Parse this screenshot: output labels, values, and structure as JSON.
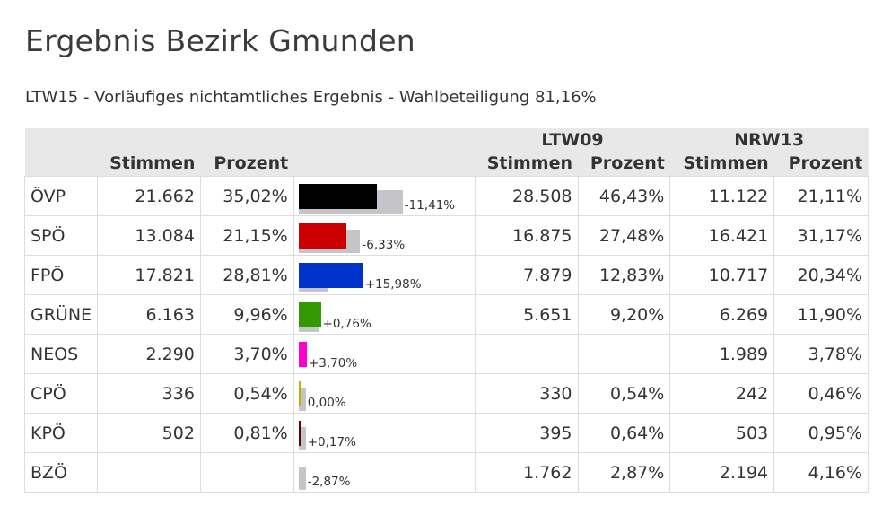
{
  "title": "Ergebnis Bezirk Gmunden",
  "subtitle": "LTW15 - Vorläufiges nichtamtliches Ergebnis - Wahlbeteiligung 81,16%",
  "headers": {
    "group_ltw09": "LTW09",
    "group_nrw13": "NRW13",
    "stimmen": "Stimmen",
    "prozent": "Prozent"
  },
  "rows": [
    {
      "party": "ÖVP",
      "stimmen": "21.662",
      "prozent": "35,02%",
      "cur_pct": 35.02,
      "prev_pct": 46.43,
      "color": "#000000",
      "diff": "-11,41%",
      "ltw09_stimmen": "28.508",
      "ltw09_prozent": "46,43%",
      "nrw13_stimmen": "11.122",
      "nrw13_prozent": "21,11%"
    },
    {
      "party": "SPÖ",
      "stimmen": "13.084",
      "prozent": "21,15%",
      "cur_pct": 21.15,
      "prev_pct": 27.48,
      "color": "#cc0000",
      "diff": "-6,33%",
      "ltw09_stimmen": "16.875",
      "ltw09_prozent": "27,48%",
      "nrw13_stimmen": "16.421",
      "nrw13_prozent": "31,17%"
    },
    {
      "party": "FPÖ",
      "stimmen": "17.821",
      "prozent": "28,81%",
      "cur_pct": 28.81,
      "prev_pct": 12.83,
      "color": "#0033cc",
      "diff": "+15,98%",
      "ltw09_stimmen": "7.879",
      "ltw09_prozent": "12,83%",
      "nrw13_stimmen": "10.717",
      "nrw13_prozent": "20,34%"
    },
    {
      "party": "GRÜNE",
      "stimmen": "6.163",
      "prozent": "9,96%",
      "cur_pct": 9.96,
      "prev_pct": 9.2,
      "color": "#339900",
      "diff": "+0,76%",
      "ltw09_stimmen": "5.651",
      "ltw09_prozent": "9,20%",
      "nrw13_stimmen": "6.269",
      "nrw13_prozent": "11,90%"
    },
    {
      "party": "NEOS",
      "stimmen": "2.290",
      "prozent": "3,70%",
      "cur_pct": 3.7,
      "prev_pct": 0,
      "color": "#ff00cc",
      "diff": "+3,70%",
      "ltw09_stimmen": "",
      "ltw09_prozent": "",
      "nrw13_stimmen": "1.989",
      "nrw13_prozent": "3,78%"
    },
    {
      "party": "CPÖ",
      "stimmen": "336",
      "prozent": "0,54%",
      "cur_pct": 0.54,
      "prev_pct": 0.54,
      "color": "#ccaa00",
      "diff": "0,00%",
      "ltw09_stimmen": "330",
      "ltw09_prozent": "0,54%",
      "nrw13_stimmen": "242",
      "nrw13_prozent": "0,46%"
    },
    {
      "party": "KPÖ",
      "stimmen": "502",
      "prozent": "0,81%",
      "cur_pct": 0.81,
      "prev_pct": 0.64,
      "color": "#660000",
      "diff": "+0,17%",
      "ltw09_stimmen": "395",
      "ltw09_prozent": "0,64%",
      "nrw13_stimmen": "503",
      "nrw13_prozent": "0,95%"
    },
    {
      "party": "BZÖ",
      "stimmen": "",
      "prozent": "",
      "cur_pct": 0,
      "prev_pct": 2.87,
      "color": "#ff9900",
      "diff": "-2,87%",
      "ltw09_stimmen": "1.762",
      "ltw09_prozent": "2,87%",
      "nrw13_stimmen": "2.194",
      "nrw13_prozent": "4,16%"
    }
  ],
  "colors": {
    "header_bg": "#e8e8e8",
    "prev_bar": "#c5c5c9",
    "border": "#dddddd"
  }
}
